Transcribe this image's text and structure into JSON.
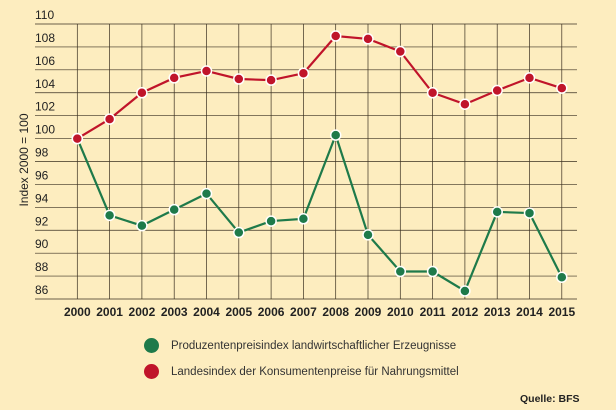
{
  "chart_data": {
    "type": "line",
    "title": "",
    "xlabel": "",
    "ylabel": "Index 2000 = 100",
    "ylim": [
      86,
      110
    ],
    "yticks": [
      86,
      88,
      90,
      92,
      94,
      96,
      98,
      100,
      102,
      104,
      106,
      108,
      110
    ],
    "x": [
      "2000",
      "2001",
      "2002",
      "2003",
      "2004",
      "2005",
      "2006",
      "2007",
      "2008",
      "2009",
      "2010",
      "2011",
      "2012",
      "2013",
      "2014",
      "2015"
    ],
    "grid": true,
    "legend_placement": "bottom",
    "series": [
      {
        "name": "Produzentenpreisindex landwirtschaftlicher Erzeugnisse",
        "color": "#1e7a4a",
        "values": [
          100,
          93.3,
          92.4,
          93.8,
          95.2,
          91.8,
          92.8,
          93.0,
          100.3,
          91.6,
          88.4,
          88.4,
          86.7,
          93.6,
          93.5,
          87.9
        ]
      },
      {
        "name": "Landesindex der Konsumentenpreise für Nahrungsmittel",
        "color": "#c0142a",
        "values": [
          100,
          101.7,
          104.0,
          105.3,
          105.9,
          105.2,
          105.1,
          105.7,
          108.95,
          108.7,
          107.6,
          104.0,
          103.0,
          104.2,
          105.3,
          104.4
        ]
      }
    ],
    "source": "Quelle: BFS"
  }
}
